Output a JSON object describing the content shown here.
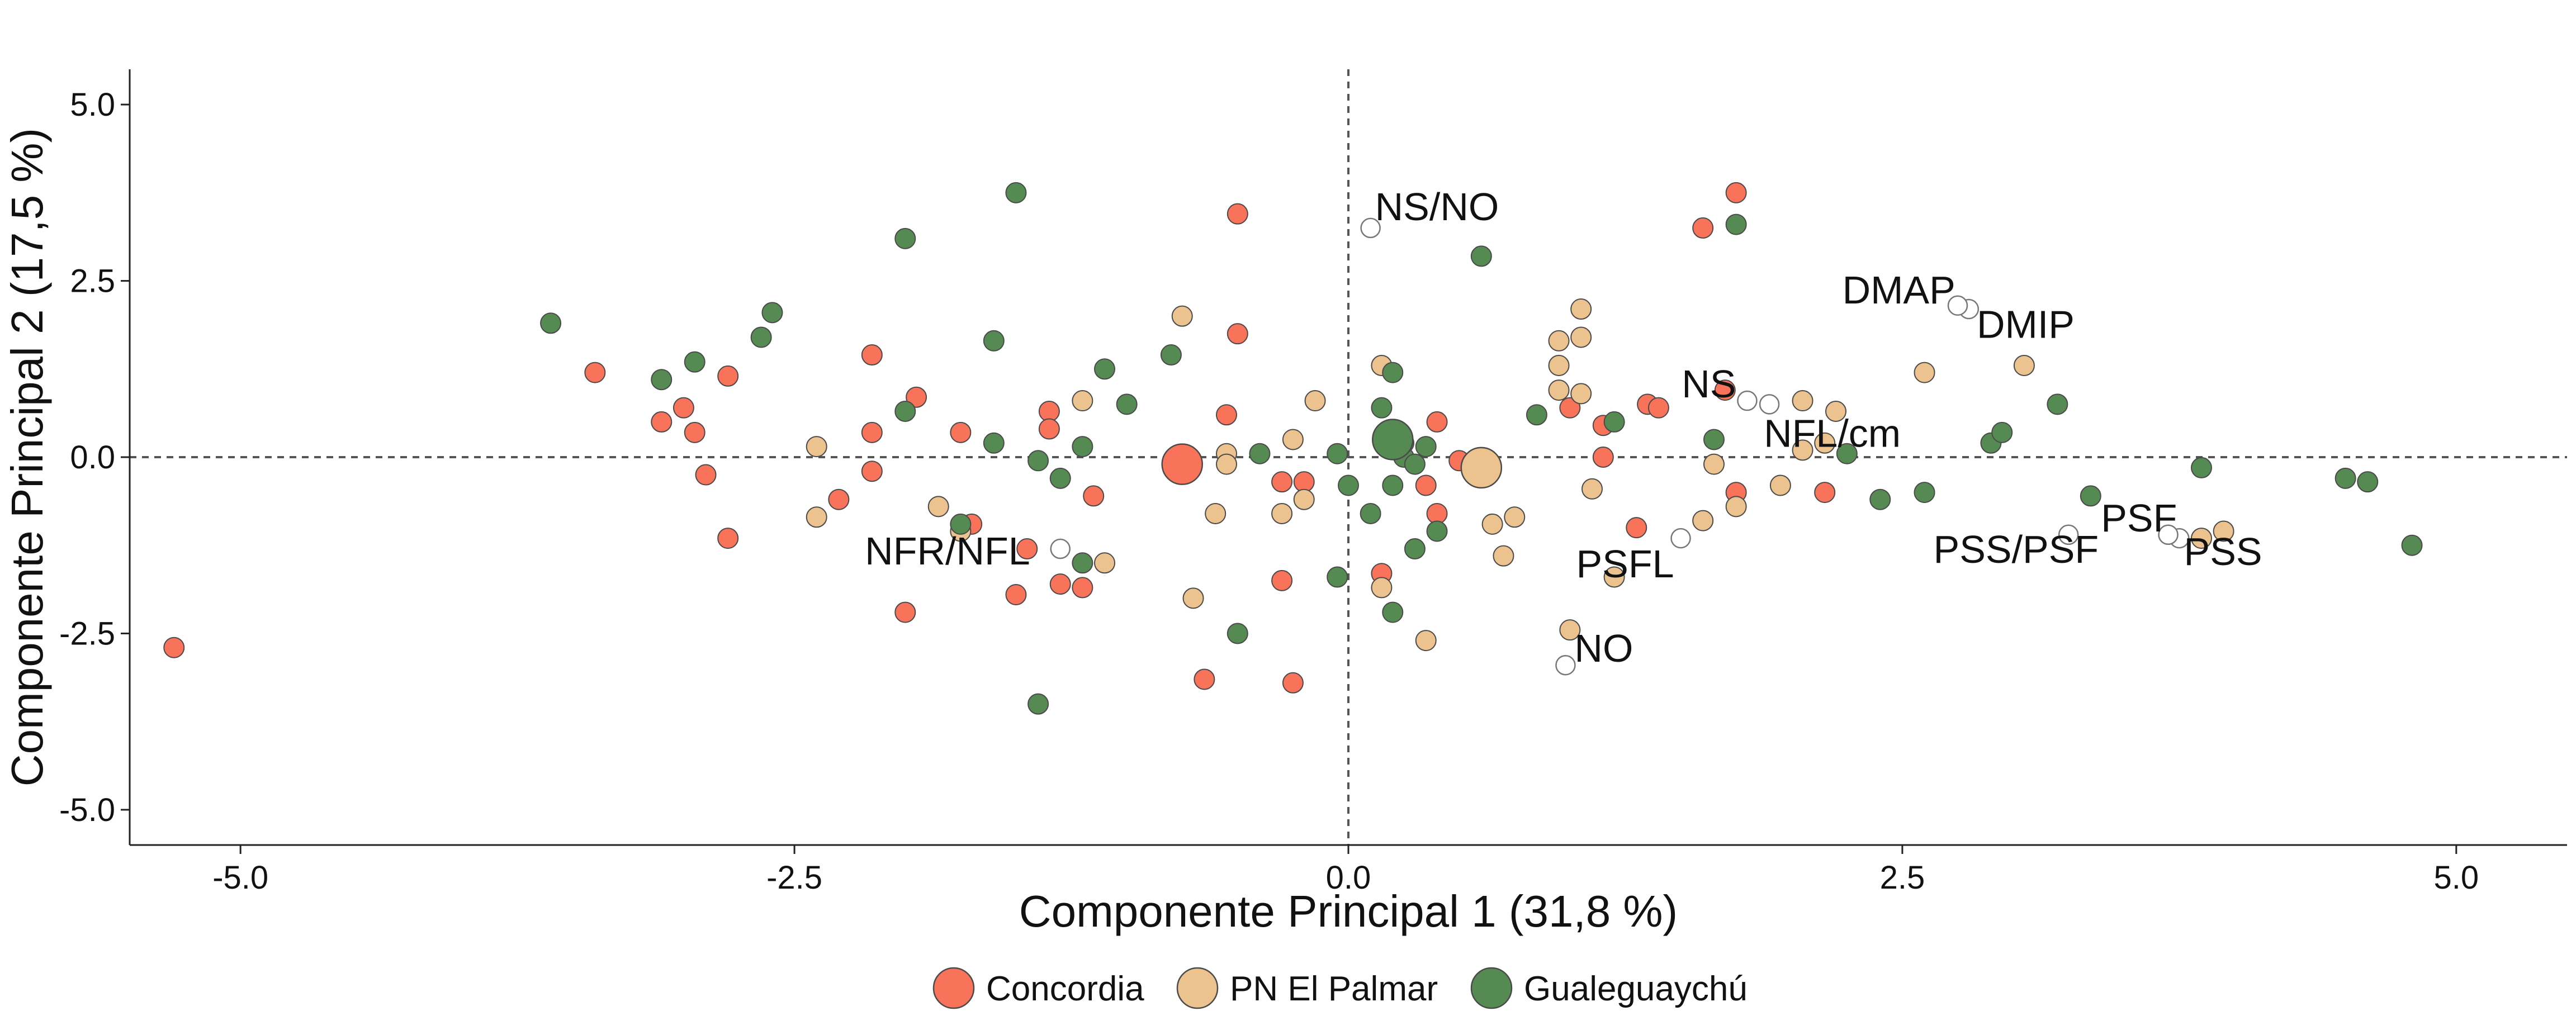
{
  "chart_data": {
    "type": "scatter",
    "title": "",
    "xlabel": "Componente Principal 1 (31,8 %)",
    "ylabel": "Componente Principal 2 (17,5 %)",
    "xlim": [
      -5.5,
      5.5
    ],
    "ylim": [
      -5.5,
      5.5
    ],
    "xticks": [
      -5.0,
      -2.5,
      0.0,
      2.5,
      5.0
    ],
    "yticks": [
      -5.0,
      -2.5,
      0.0,
      2.5,
      5.0
    ],
    "xtick_labels": [
      "-5.0",
      "-2.5",
      "0.0",
      "2.5",
      "5.0"
    ],
    "ytick_labels": [
      "-5.0",
      "-2.5",
      "0.0",
      "2.5",
      "5.0"
    ],
    "reference_lines": {
      "x": 0,
      "y": 0,
      "style": "dashed"
    },
    "grid": false,
    "legend_position": "bottom",
    "series": [
      {
        "name": "Concordia",
        "color": "#f8735a",
        "centroid": [
          -0.75,
          -0.1
        ],
        "points": [
          [
            -5.3,
            -2.7
          ],
          [
            -3.4,
            1.2
          ],
          [
            -3.0,
            0.7
          ],
          [
            -3.1,
            0.5
          ],
          [
            -2.95,
            0.35
          ],
          [
            -2.9,
            -0.25
          ],
          [
            -2.8,
            1.15
          ],
          [
            -2.8,
            -1.15
          ],
          [
            -2.3,
            -0.6
          ],
          [
            -2.15,
            1.45
          ],
          [
            -2.15,
            0.35
          ],
          [
            -2.15,
            -0.2
          ],
          [
            -2.0,
            -2.2
          ],
          [
            -1.95,
            0.85
          ],
          [
            -1.75,
            0.35
          ],
          [
            -1.7,
            -0.95
          ],
          [
            -1.5,
            -1.95
          ],
          [
            -1.45,
            -1.3
          ],
          [
            -1.35,
            0.65
          ],
          [
            -1.35,
            0.4
          ],
          [
            -1.3,
            -1.8
          ],
          [
            -1.2,
            -1.85
          ],
          [
            -1.15,
            -0.55
          ],
          [
            -0.5,
            3.45
          ],
          [
            -0.5,
            1.75
          ],
          [
            -0.55,
            0.6
          ],
          [
            -0.65,
            -3.15
          ],
          [
            -0.3,
            -0.35
          ],
          [
            -0.3,
            -1.75
          ],
          [
            -0.25,
            -3.2
          ],
          [
            -0.2,
            -0.35
          ],
          [
            0.15,
            -1.65
          ],
          [
            0.35,
            -0.4
          ],
          [
            0.4,
            0.5
          ],
          [
            0.4,
            -0.8
          ],
          [
            0.5,
            -0.05
          ],
          [
            1.0,
            0.7
          ],
          [
            1.15,
            0.45
          ],
          [
            1.15,
            0.0
          ],
          [
            1.3,
            -1.0
          ],
          [
            1.35,
            0.75
          ],
          [
            1.4,
            0.7
          ],
          [
            1.6,
            3.25
          ],
          [
            1.7,
            0.95
          ],
          [
            1.75,
            3.75
          ],
          [
            1.75,
            -0.5
          ],
          [
            2.15,
            -0.5
          ]
        ]
      },
      {
        "name": "PN El Palmar",
        "color": "#ecc28f",
        "centroid": [
          0.6,
          -0.15
        ],
        "points": [
          [
            -2.4,
            0.15
          ],
          [
            -2.4,
            -0.85
          ],
          [
            -1.85,
            -0.7
          ],
          [
            -1.75,
            -1.05
          ],
          [
            -1.2,
            0.8
          ],
          [
            -1.1,
            -1.5
          ],
          [
            -0.75,
            2.0
          ],
          [
            -0.7,
            -2.0
          ],
          [
            -0.55,
            0.05
          ],
          [
            -0.55,
            -0.1
          ],
          [
            -0.6,
            -0.8
          ],
          [
            -0.3,
            -0.8
          ],
          [
            -0.25,
            0.25
          ],
          [
            -0.2,
            -0.6
          ],
          [
            -0.15,
            0.8
          ],
          [
            0.15,
            1.3
          ],
          [
            0.15,
            -1.85
          ],
          [
            0.35,
            -2.6
          ],
          [
            0.65,
            -0.95
          ],
          [
            0.7,
            -1.4
          ],
          [
            0.75,
            -0.85
          ],
          [
            0.95,
            1.65
          ],
          [
            0.95,
            1.3
          ],
          [
            0.95,
            0.95
          ],
          [
            1.0,
            -2.45
          ],
          [
            1.05,
            2.1
          ],
          [
            1.05,
            1.7
          ],
          [
            1.05,
            0.9
          ],
          [
            1.1,
            -0.45
          ],
          [
            1.2,
            -1.7
          ],
          [
            1.6,
            -0.9
          ],
          [
            1.65,
            -0.1
          ],
          [
            1.75,
            -0.7
          ],
          [
            1.95,
            -0.4
          ],
          [
            2.05,
            0.8
          ],
          [
            2.05,
            0.1
          ],
          [
            2.15,
            0.2
          ],
          [
            2.2,
            0.65
          ],
          [
            2.6,
            1.2
          ],
          [
            3.05,
            1.3
          ],
          [
            3.85,
            -1.15
          ],
          [
            3.95,
            -1.05
          ]
        ]
      },
      {
        "name": "Gualeguaychú",
        "color": "#558b52",
        "centroid": [
          0.2,
          0.25
        ],
        "points": [
          [
            -3.6,
            1.9
          ],
          [
            -3.1,
            1.1
          ],
          [
            -2.95,
            1.35
          ],
          [
            -2.65,
            1.7
          ],
          [
            -2.6,
            2.05
          ],
          [
            -2.0,
            3.1
          ],
          [
            -2.0,
            0.65
          ],
          [
            -1.75,
            -0.95
          ],
          [
            -1.6,
            1.65
          ],
          [
            -1.6,
            0.2
          ],
          [
            -1.5,
            3.75
          ],
          [
            -1.4,
            -0.05
          ],
          [
            -1.4,
            -3.5
          ],
          [
            -1.3,
            -0.3
          ],
          [
            -1.2,
            0.15
          ],
          [
            -1.2,
            -1.5
          ],
          [
            -1.1,
            1.25
          ],
          [
            -1.0,
            0.75
          ],
          [
            -0.8,
            1.45
          ],
          [
            -0.5,
            -2.5
          ],
          [
            -0.4,
            0.05
          ],
          [
            -0.05,
            -1.7
          ],
          [
            -0.05,
            0.05
          ],
          [
            0.0,
            -0.4
          ],
          [
            0.1,
            -0.8
          ],
          [
            0.15,
            0.7
          ],
          [
            0.2,
            1.2
          ],
          [
            0.2,
            -0.4
          ],
          [
            0.2,
            -2.2
          ],
          [
            0.25,
            0.0
          ],
          [
            0.25,
            0.2
          ],
          [
            0.3,
            -0.1
          ],
          [
            0.3,
            -1.3
          ],
          [
            0.35,
            0.15
          ],
          [
            0.4,
            -1.05
          ],
          [
            0.6,
            2.85
          ],
          [
            0.85,
            0.6
          ],
          [
            1.2,
            0.5
          ],
          [
            1.65,
            0.25
          ],
          [
            1.75,
            3.3
          ],
          [
            2.25,
            0.05
          ],
          [
            2.4,
            -0.6
          ],
          [
            2.6,
            -0.5
          ],
          [
            2.9,
            0.2
          ],
          [
            2.95,
            0.35
          ],
          [
            3.2,
            0.75
          ],
          [
            3.35,
            -0.55
          ],
          [
            3.85,
            -0.15
          ],
          [
            4.5,
            -0.3
          ],
          [
            4.6,
            -0.35
          ],
          [
            4.8,
            -1.25
          ]
        ]
      }
    ],
    "variables": [
      {
        "name": "NS/NO",
        "x": 0.1,
        "y": 3.25
      },
      {
        "name": "DMAP",
        "x": 2.8,
        "y": 2.1
      },
      {
        "name": "DMIP",
        "x": 2.75,
        "y": 2.15
      },
      {
        "name": "NS",
        "x": 1.8,
        "y": 0.8
      },
      {
        "name": "NFL/cm",
        "x": 1.9,
        "y": 0.75
      },
      {
        "name": "NFR/NFL",
        "x": -1.3,
        "y": -1.3
      },
      {
        "name": "PSFL",
        "x": 1.5,
        "y": -1.15
      },
      {
        "name": "NO",
        "x": 0.98,
        "y": -2.95
      },
      {
        "name": "PSF",
        "x": 3.75,
        "y": -1.15
      },
      {
        "name": "PSS",
        "x": 3.7,
        "y": -1.1
      },
      {
        "name": "PSS/PSF",
        "x": 3.25,
        "y": -1.1
      }
    ]
  }
}
